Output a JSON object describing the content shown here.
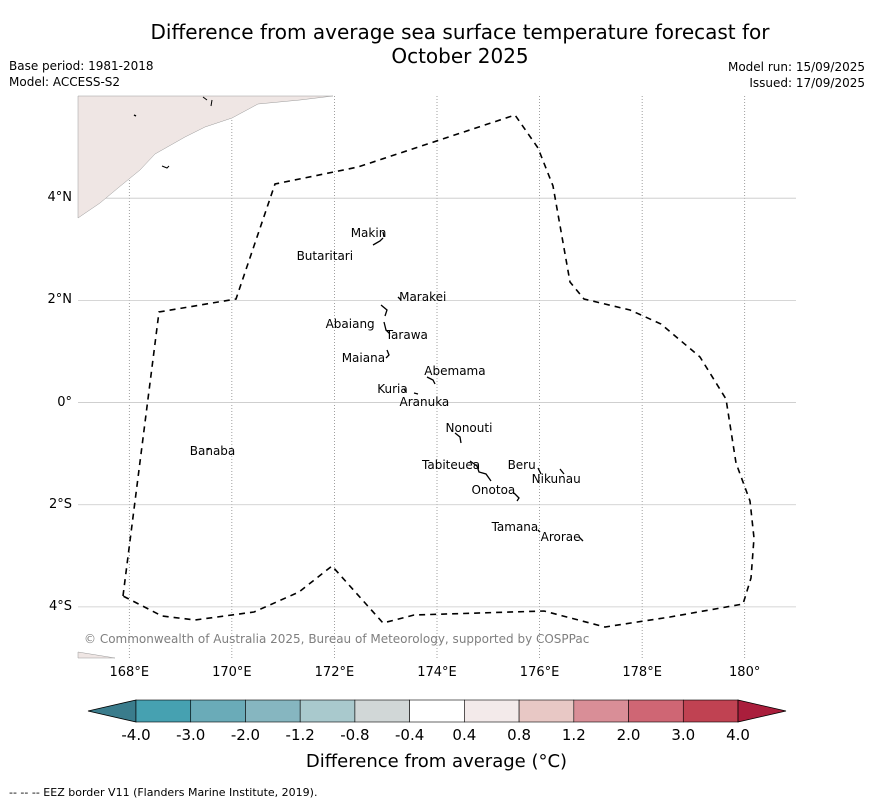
{
  "title": "Difference from average sea surface temperature forecast for October 2025",
  "base_period": "Base period: 1981-2018",
  "model": "Model: ACCESS-S2",
  "model_run": "Model run: 15/09/2025",
  "issued": "Issued: 17/09/2025",
  "copyright": "© Commonwealth of Australia 2025, Bureau of Meteorology, supported by COSPPac",
  "footnote": "-- -- -- EEZ border V11 (Flanders Marine Institute, 2019).",
  "map": {
    "lon_range": [
      167,
      181
    ],
    "lat_range": [
      -5,
      6
    ],
    "lon_ticks": [
      {
        "value": 168,
        "label": "168°E"
      },
      {
        "value": 170,
        "label": "170°E"
      },
      {
        "value": 172,
        "label": "172°E"
      },
      {
        "value": 174,
        "label": "174°E"
      },
      {
        "value": 176,
        "label": "176°E"
      },
      {
        "value": 178,
        "label": "178°E"
      },
      {
        "value": 180,
        "label": "180°"
      }
    ],
    "lat_ticks": [
      {
        "value": 4,
        "label": "4°N"
      },
      {
        "value": 2,
        "label": "2°N"
      },
      {
        "value": 0,
        "label": "0°"
      },
      {
        "value": -2,
        "label": "2°S"
      },
      {
        "value": -4,
        "label": "4°S"
      }
    ],
    "islands": [
      {
        "name": "Makin",
        "lon": 173.0,
        "lat": 3.3
      },
      {
        "name": "Butaritari",
        "lon": 172.9,
        "lat": 3.1
      },
      {
        "name": "Marakei",
        "lon": 173.3,
        "lat": 2.0
      },
      {
        "name": "Abaiang",
        "lon": 172.9,
        "lat": 1.8
      },
      {
        "name": "Tarawa",
        "lon": 173.0,
        "lat": 1.4
      },
      {
        "name": "Maiana",
        "lon": 173.0,
        "lat": 0.95
      },
      {
        "name": "Abemama",
        "lon": 173.85,
        "lat": 0.4
      },
      {
        "name": "Kuria",
        "lon": 173.4,
        "lat": 0.22
      },
      {
        "name": "Aranuka",
        "lon": 173.6,
        "lat": 0.17
      },
      {
        "name": "Banaba",
        "lon": 169.53,
        "lat": -0.87
      },
      {
        "name": "Nonouti",
        "lon": 174.4,
        "lat": -0.65
      },
      {
        "name": "Tabiteuea",
        "lon": 174.8,
        "lat": -1.3
      },
      {
        "name": "Beru",
        "lon": 176.0,
        "lat": -1.33
      },
      {
        "name": "Nikunau",
        "lon": 176.45,
        "lat": -1.35
      },
      {
        "name": "Onotoa",
        "lon": 175.55,
        "lat": -1.8
      },
      {
        "name": "Tamana",
        "lon": 176.0,
        "lat": -2.5
      },
      {
        "name": "Arorae",
        "lon": 176.82,
        "lat": -2.65
      }
    ],
    "land_color": "#efe6e4",
    "grid_color": "#c8c8c8"
  },
  "colorbar": {
    "ticks": [
      "-4.0",
      "-3.0",
      "-2.0",
      "-1.2",
      "-0.8",
      "-0.4",
      "0.4",
      "0.8",
      "1.2",
      "2.0",
      "3.0",
      "4.0"
    ],
    "colors": [
      "#3a7c8c",
      "#46a1b1",
      "#6aabb8",
      "#86b6c0",
      "#a9c9cd",
      "#d1d7d7",
      "#ffffff",
      "#f3eaea",
      "#e8c8c5",
      "#d98e97",
      "#cf6674",
      "#c04252",
      "#aa1e3c"
    ],
    "title": "Difference from average (°C)"
  }
}
